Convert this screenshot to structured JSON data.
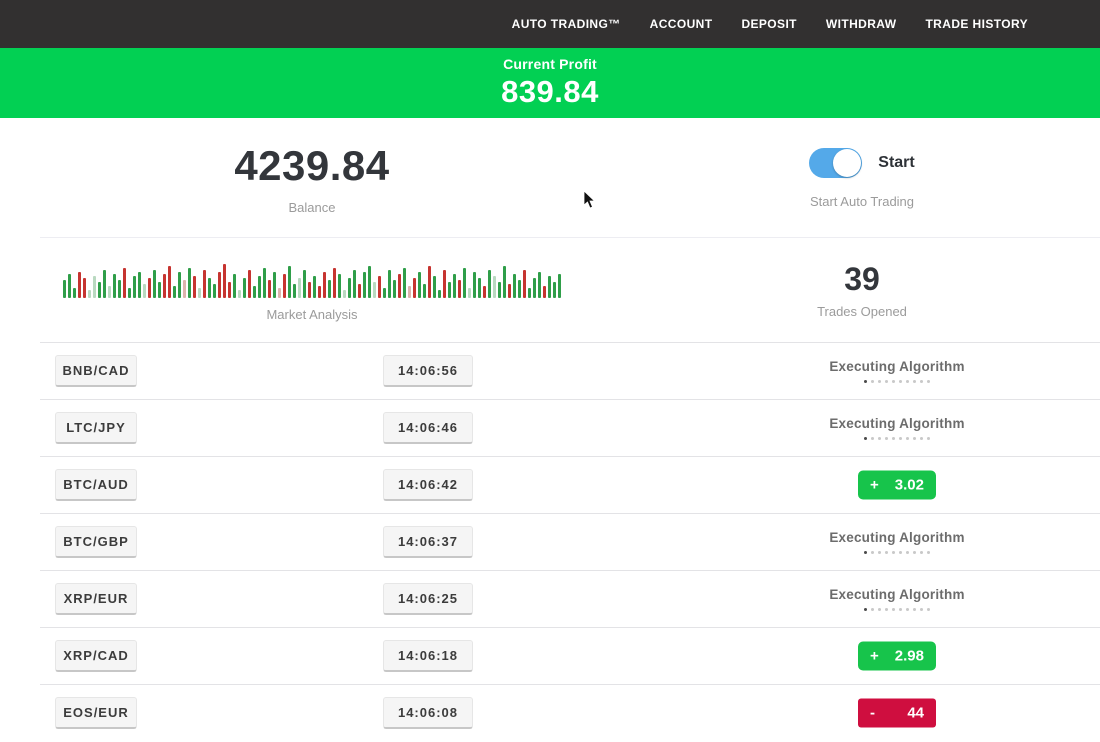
{
  "nav": {
    "items": [
      "AUTO TRADING™",
      "ACCOUNT",
      "DEPOSIT",
      "WITHDRAW",
      "TRADE HISTORY"
    ]
  },
  "banner": {
    "label": "Current Profit",
    "value": "839.84"
  },
  "account": {
    "balance": "4239.84",
    "balance_label": "Balance",
    "toggle_state": "on",
    "toggle_label": "Start",
    "toggle_caption": "Start Auto Trading"
  },
  "market": {
    "label": "Market Analysis",
    "trades_opened": "39",
    "trades_opened_label": "Trades Opened"
  },
  "chart_data": {
    "type": "bar",
    "title": "Market Analysis",
    "description": "mini tick chart of green/red volume bars, no axes",
    "palette": {
      "g": "#2f9e49",
      "r": "#c63430",
      "p": "#b9d9c0",
      "q": "#ddb4ad"
    },
    "bars": [
      [
        18,
        "g"
      ],
      [
        24,
        "g"
      ],
      [
        10,
        "g"
      ],
      [
        26,
        "r"
      ],
      [
        20,
        "r"
      ],
      [
        8,
        "p"
      ],
      [
        22,
        "p"
      ],
      [
        16,
        "g"
      ],
      [
        28,
        "g"
      ],
      [
        12,
        "p"
      ],
      [
        24,
        "g"
      ],
      [
        18,
        "g"
      ],
      [
        30,
        "r"
      ],
      [
        10,
        "g"
      ],
      [
        22,
        "g"
      ],
      [
        26,
        "g"
      ],
      [
        14,
        "p"
      ],
      [
        20,
        "r"
      ],
      [
        28,
        "g"
      ],
      [
        16,
        "g"
      ],
      [
        24,
        "r"
      ],
      [
        32,
        "r"
      ],
      [
        12,
        "g"
      ],
      [
        26,
        "g"
      ],
      [
        18,
        "q"
      ],
      [
        30,
        "g"
      ],
      [
        22,
        "r"
      ],
      [
        10,
        "p"
      ],
      [
        28,
        "r"
      ],
      [
        20,
        "g"
      ],
      [
        14,
        "g"
      ],
      [
        26,
        "r"
      ],
      [
        34,
        "r"
      ],
      [
        16,
        "r"
      ],
      [
        24,
        "g"
      ],
      [
        8,
        "p"
      ],
      [
        20,
        "g"
      ],
      [
        28,
        "r"
      ],
      [
        12,
        "g"
      ],
      [
        22,
        "g"
      ],
      [
        30,
        "g"
      ],
      [
        18,
        "r"
      ],
      [
        26,
        "g"
      ],
      [
        10,
        "q"
      ],
      [
        24,
        "r"
      ],
      [
        32,
        "g"
      ],
      [
        14,
        "g"
      ],
      [
        20,
        "p"
      ],
      [
        28,
        "g"
      ],
      [
        16,
        "r"
      ],
      [
        22,
        "g"
      ],
      [
        12,
        "r"
      ],
      [
        26,
        "r"
      ],
      [
        18,
        "g"
      ],
      [
        30,
        "r"
      ],
      [
        24,
        "g"
      ],
      [
        8,
        "p"
      ],
      [
        20,
        "g"
      ],
      [
        28,
        "g"
      ],
      [
        14,
        "r"
      ],
      [
        26,
        "g"
      ],
      [
        32,
        "g"
      ],
      [
        16,
        "p"
      ],
      [
        22,
        "r"
      ],
      [
        10,
        "g"
      ],
      [
        28,
        "g"
      ],
      [
        18,
        "g"
      ],
      [
        24,
        "r"
      ],
      [
        30,
        "g"
      ],
      [
        12,
        "q"
      ],
      [
        20,
        "r"
      ],
      [
        26,
        "g"
      ],
      [
        14,
        "g"
      ],
      [
        32,
        "r"
      ],
      [
        22,
        "g"
      ],
      [
        8,
        "g"
      ],
      [
        28,
        "r"
      ],
      [
        16,
        "g"
      ],
      [
        24,
        "g"
      ],
      [
        18,
        "r"
      ],
      [
        30,
        "g"
      ],
      [
        10,
        "p"
      ],
      [
        26,
        "g"
      ],
      [
        20,
        "g"
      ],
      [
        12,
        "r"
      ],
      [
        28,
        "g"
      ],
      [
        22,
        "p"
      ],
      [
        16,
        "g"
      ],
      [
        32,
        "g"
      ],
      [
        14,
        "r"
      ],
      [
        24,
        "g"
      ],
      [
        18,
        "g"
      ],
      [
        28,
        "r"
      ],
      [
        10,
        "g"
      ],
      [
        20,
        "g"
      ],
      [
        26,
        "g"
      ],
      [
        12,
        "r"
      ],
      [
        22,
        "g"
      ],
      [
        16,
        "g"
      ],
      [
        24,
        "g"
      ]
    ]
  },
  "trades": {
    "executing_label": "Executing Algorithm",
    "dots_total": 10,
    "dots_active": 1,
    "rows": [
      {
        "pair": "BNB/CAD",
        "time": "14:06:56",
        "status": "executing"
      },
      {
        "pair": "LTC/JPY",
        "time": "14:06:46",
        "status": "executing"
      },
      {
        "pair": "BTC/AUD",
        "time": "14:06:42",
        "status": "win",
        "sign": "+",
        "amount": "3.02"
      },
      {
        "pair": "BTC/GBP",
        "time": "14:06:37",
        "status": "executing"
      },
      {
        "pair": "XRP/EUR",
        "time": "14:06:25",
        "status": "executing"
      },
      {
        "pair": "XRP/CAD",
        "time": "14:06:18",
        "status": "win",
        "sign": "+",
        "amount": "2.98"
      },
      {
        "pair": "EOS/EUR",
        "time": "14:06:08",
        "status": "loss",
        "sign": "-",
        "amount": "44"
      }
    ]
  },
  "colors": {
    "nav_bg": "#323030",
    "banner_bg": "#02d053",
    "toggle_blue": "#54a9e9",
    "chip_bg": "#f5f5f5",
    "chip_border": "#c7c7c7",
    "win_bg": "#17c44b",
    "loss_bg": "#cf0e3f"
  }
}
